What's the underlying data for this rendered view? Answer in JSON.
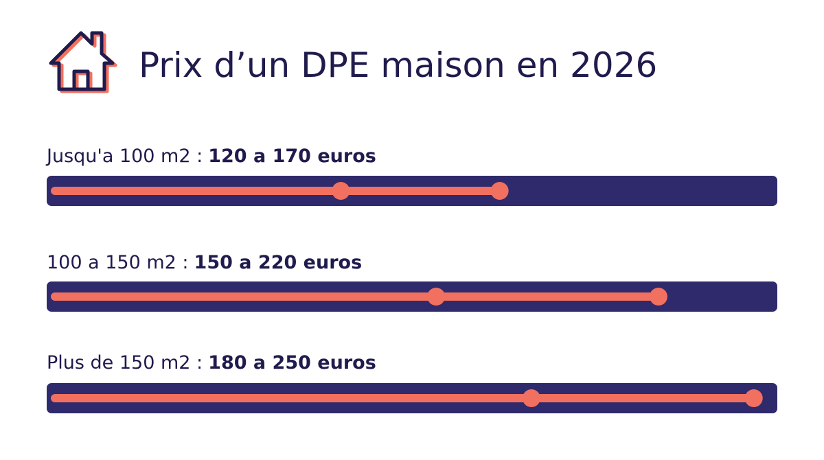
{
  "chart_data": {
    "type": "range",
    "title": "Prix d’un DPE maison en 2026",
    "categories": [
      "Jusqu'a 100 m2 :",
      "100 a 150 m2 :",
      "Plus de 150 m2 :"
    ],
    "low": [
      120,
      150,
      180
    ],
    "high": [
      170,
      220,
      250
    ],
    "value_labels": [
      "120 a 170 euros",
      "150 a 220 euros",
      "180 a 250 euros"
    ],
    "xlim": [
      30,
      252
    ],
    "track_color": "#2f2a6b",
    "color": "#f2705f"
  }
}
